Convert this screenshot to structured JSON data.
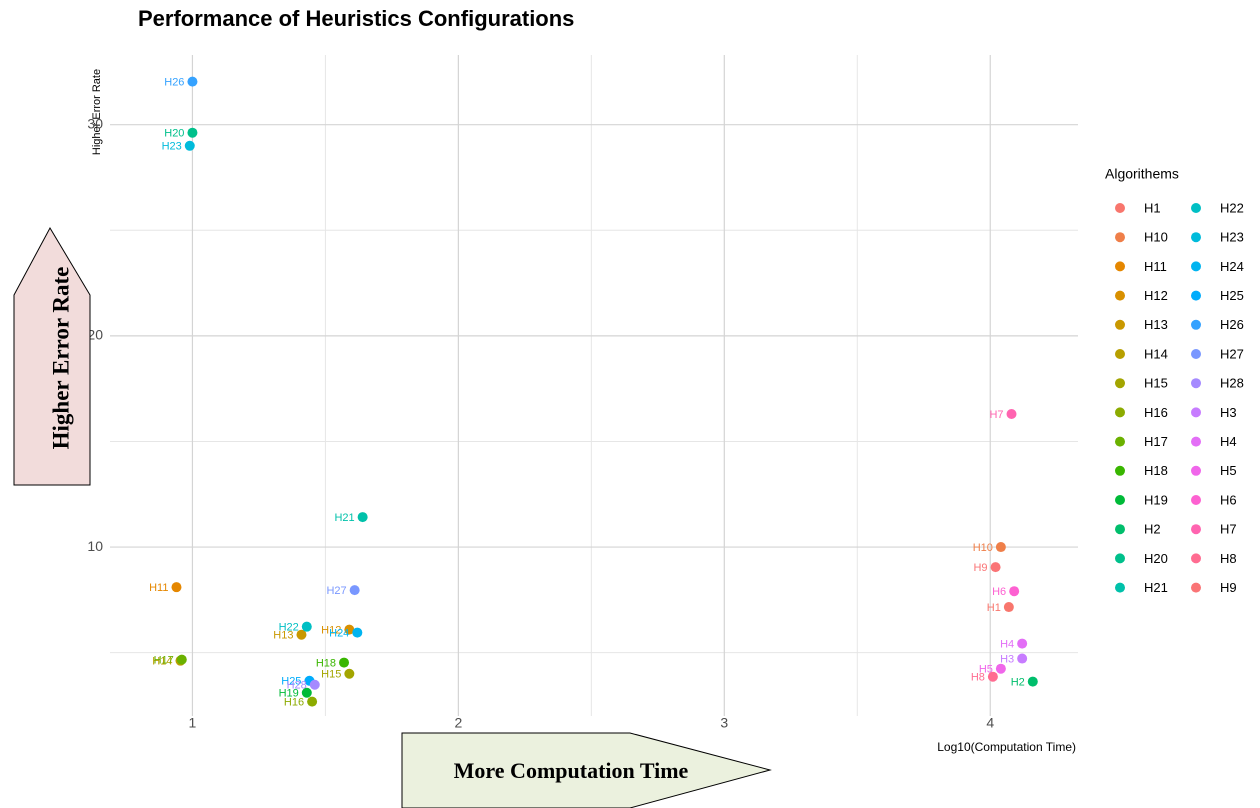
{
  "chart_data": {
    "type": "scatter",
    "title": "Performance of Heuristics Configurations",
    "x_label": "Log10(Computation Time)",
    "y_label": "Higher Error Rate",
    "legend_title": "Algorithems",
    "annotations": [
      "Higher Error Rate",
      "More Computation Time"
    ],
    "xlim": [
      0.69,
      4.33
    ],
    "ylim": [
      2.0,
      33.3
    ],
    "xticks": [
      1,
      2,
      3,
      4
    ],
    "yticks": [
      10,
      20,
      30
    ],
    "grid": true,
    "legend_position": "right",
    "series": [
      {
        "name": "H1",
        "color": "#F8766D",
        "x": [
          4.07
        ],
        "values": [
          7.16
        ]
      },
      {
        "name": "H10",
        "color": "#EF7F49",
        "x": [
          4.04
        ],
        "values": [
          10.0
        ]
      },
      {
        "name": "H11",
        "color": "#E58700",
        "x": [
          0.94
        ],
        "values": [
          8.1
        ]
      },
      {
        "name": "H12",
        "color": "#D89000",
        "x": [
          1.59
        ],
        "values": [
          6.09
        ]
      },
      {
        "name": "H13",
        "color": "#C99800",
        "x": [
          1.41
        ],
        "values": [
          5.85
        ]
      },
      {
        "name": "H14",
        "color": "#B79F00",
        "x": [
          0.955
        ],
        "values": [
          4.62
        ]
      },
      {
        "name": "H15",
        "color": "#A3A500",
        "x": [
          1.59
        ],
        "values": [
          4.0
        ]
      },
      {
        "name": "H16",
        "color": "#8CAB00",
        "x": [
          1.45
        ],
        "values": [
          2.68
        ]
      },
      {
        "name": "H17",
        "color": "#6BB100",
        "x": [
          0.96
        ],
        "values": [
          4.67
        ]
      },
      {
        "name": "H18",
        "color": "#39B600",
        "x": [
          1.57
        ],
        "values": [
          4.53
        ]
      },
      {
        "name": "H19",
        "color": "#00BA38",
        "x": [
          1.43
        ],
        "values": [
          3.1
        ]
      },
      {
        "name": "H2",
        "color": "#00BE6C",
        "x": [
          4.16
        ],
        "values": [
          3.63
        ]
      },
      {
        "name": "H20",
        "color": "#00C08B",
        "x": [
          1.0
        ],
        "values": [
          29.62
        ]
      },
      {
        "name": "H21",
        "color": "#00C1AA",
        "x": [
          1.64
        ],
        "values": [
          11.42
        ]
      },
      {
        "name": "H22",
        "color": "#00BFC4",
        "x": [
          1.43
        ],
        "values": [
          6.23
        ]
      },
      {
        "name": "H23",
        "color": "#00BBDB",
        "x": [
          0.99
        ],
        "values": [
          29.0
        ]
      },
      {
        "name": "H24",
        "color": "#00B4F0",
        "x": [
          1.62
        ],
        "values": [
          5.95
        ]
      },
      {
        "name": "H25",
        "color": "#00ACFC",
        "x": [
          1.44
        ],
        "values": [
          3.67
        ]
      },
      {
        "name": "H26",
        "color": "#35A2FF",
        "x": [
          1.0
        ],
        "values": [
          32.04
        ]
      },
      {
        "name": "H27",
        "color": "#7997FF",
        "x": [
          1.61
        ],
        "values": [
          7.96
        ]
      },
      {
        "name": "H28",
        "color": "#A58AFF",
        "x": [
          1.46
        ],
        "values": [
          3.48
        ]
      },
      {
        "name": "H3",
        "color": "#C77CFF",
        "x": [
          4.12
        ],
        "values": [
          4.72
        ]
      },
      {
        "name": "H4",
        "color": "#E36EF6",
        "x": [
          4.12
        ],
        "values": [
          5.43
        ]
      },
      {
        "name": "H5",
        "color": "#F066EA",
        "x": [
          4.04
        ],
        "values": [
          4.24
        ]
      },
      {
        "name": "H6",
        "color": "#FD61D1",
        "x": [
          4.09
        ],
        "values": [
          7.91
        ]
      },
      {
        "name": "H7",
        "color": "#FF64B0",
        "x": [
          4.08
        ],
        "values": [
          16.3
        ]
      },
      {
        "name": "H8",
        "color": "#FF6C91",
        "x": [
          4.01
        ],
        "values": [
          3.86
        ]
      },
      {
        "name": "H9",
        "color": "#FA7476",
        "x": [
          4.02
        ],
        "values": [
          9.05
        ]
      }
    ]
  }
}
